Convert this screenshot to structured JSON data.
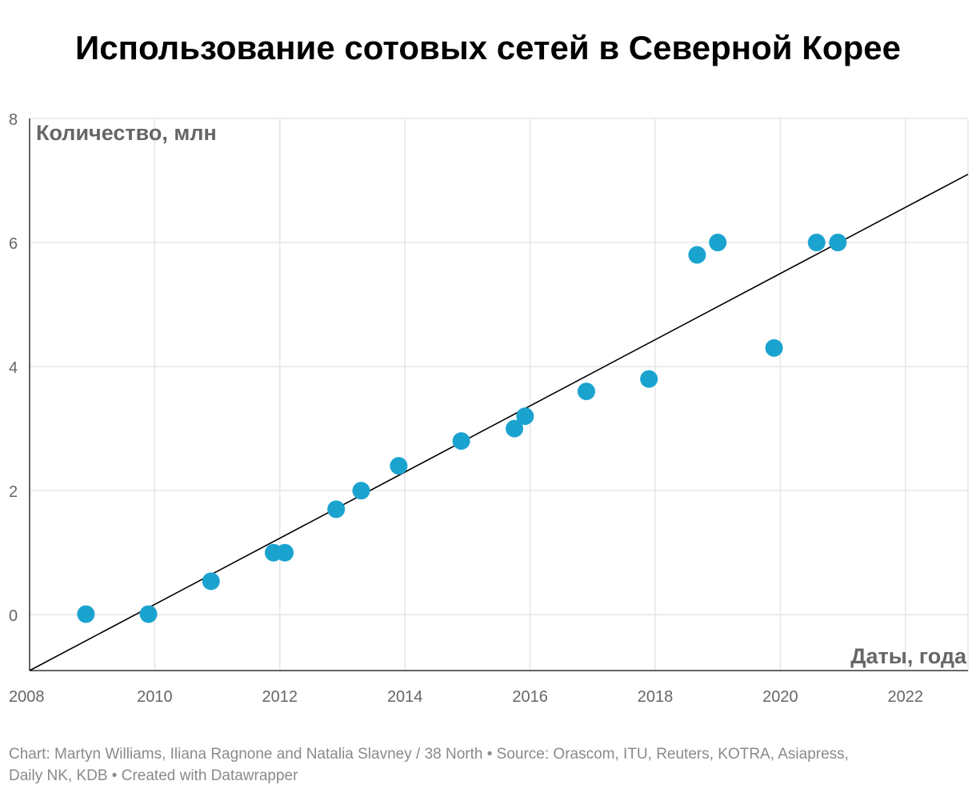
{
  "title": "Использование сотовых сетей в Северной Корее",
  "footer": {
    "line1": "Chart: Martyn Williams, Iliana Ragnone and Natalia Slavney / 38 North • Source: Orascom, ITU, Reuters, KOTRA, Asiapress,",
    "line2": "Daily NK, KDB • Created with Datawrapper"
  },
  "chart_data": {
    "type": "scatter",
    "title": "Использование сотовых сетей в Северной Корее",
    "xlabel": "Даты, года",
    "ylabel": "Количество, млн",
    "xlim": [
      2008,
      2023
    ],
    "ylim": [
      -0.9,
      8
    ],
    "x_ticks": [
      2008,
      2010,
      2012,
      2014,
      2016,
      2018,
      2020,
      2022
    ],
    "y_ticks": [
      0,
      2,
      4,
      6,
      8
    ],
    "grid": true,
    "colors": {
      "points": "#1ba3d0",
      "trendline": "#000000",
      "grid": "#e5e5e5",
      "axis": "#333333"
    },
    "points": [
      {
        "x": 2008.9,
        "y": 0.01
      },
      {
        "x": 2009.9,
        "y": 0.01
      },
      {
        "x": 2010.9,
        "y": 0.54
      },
      {
        "x": 2011.9,
        "y": 1.0
      },
      {
        "x": 2012.08,
        "y": 1.0
      },
      {
        "x": 2012.9,
        "y": 1.7
      },
      {
        "x": 2013.3,
        "y": 2.0
      },
      {
        "x": 2013.9,
        "y": 2.4
      },
      {
        "x": 2014.9,
        "y": 2.8
      },
      {
        "x": 2015.75,
        "y": 3.0
      },
      {
        "x": 2015.92,
        "y": 3.2
      },
      {
        "x": 2016.9,
        "y": 3.6
      },
      {
        "x": 2017.9,
        "y": 3.8
      },
      {
        "x": 2018.67,
        "y": 5.8
      },
      {
        "x": 2019.0,
        "y": 6.0
      },
      {
        "x": 2019.9,
        "y": 4.3
      },
      {
        "x": 2020.58,
        "y": 6.0
      },
      {
        "x": 2020.92,
        "y": 6.0
      }
    ],
    "trendline": {
      "x": [
        2008,
        2023
      ],
      "y": [
        -0.9,
        7.1
      ]
    }
  }
}
